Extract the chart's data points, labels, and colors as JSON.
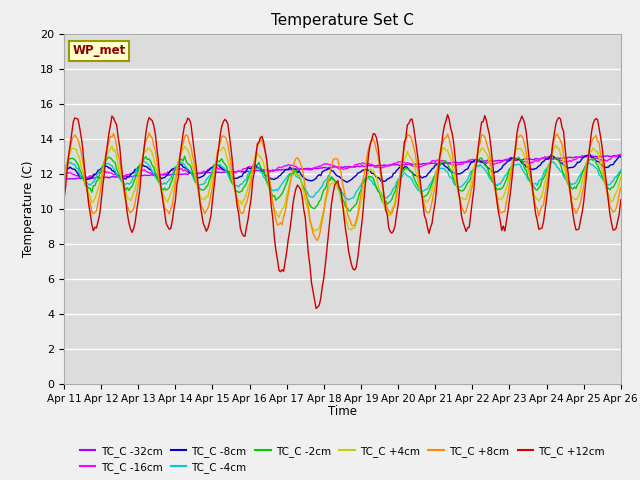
{
  "title": "Temperature Set C",
  "xlabel": "Time",
  "ylabel": "Temperature (C)",
  "ylim": [
    0,
    20
  ],
  "yticks": [
    0,
    2,
    4,
    6,
    8,
    10,
    12,
    14,
    16,
    18,
    20
  ],
  "plot_bg_color": "#dcdcdc",
  "fig_bg_color": "#f0f0f0",
  "annotation_text": "WP_met",
  "annotation_bg": "#ffffcc",
  "annotation_border": "#999900",
  "annotation_text_color": "#880000",
  "xtick_labels": [
    "Apr 11",
    "Apr 12",
    "Apr 13",
    "Apr 14",
    "Apr 15",
    "Apr 16",
    "Apr 17",
    "Apr 18",
    "Apr 19",
    "Apr 20",
    "Apr 21",
    "Apr 22",
    "Apr 23",
    "Apr 24",
    "Apr 25",
    "Apr 26"
  ],
  "series_names": [
    "TC_C -32cm",
    "TC_C -16cm",
    "TC_C -8cm",
    "TC_C -4cm",
    "TC_C -2cm",
    "TC_C +4cm",
    "TC_C +8cm",
    "TC_C +12cm"
  ],
  "series_colors": [
    "#aa00ff",
    "#ff00ff",
    "#0000cc",
    "#00cccc",
    "#00cc00",
    "#cccc00",
    "#ff8800",
    "#cc0000"
  ]
}
